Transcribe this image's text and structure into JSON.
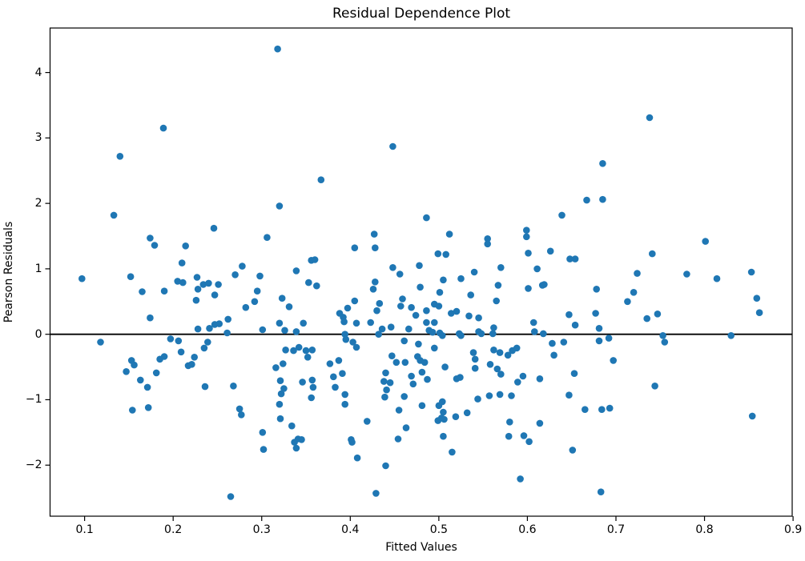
{
  "chart_data": {
    "type": "scatter",
    "title": "Residual Dependence Plot",
    "xlabel": "Fitted Values",
    "ylabel": "Pearson Residuals",
    "xlim": [
      0.061,
      0.899
    ],
    "ylim": [
      -2.78,
      4.68
    ],
    "grid": false,
    "legend": null,
    "marker_color": "#1f77b4",
    "zero_line": {
      "y": 0,
      "color": "#000000"
    },
    "x_ticks": [
      {
        "v": 0.1,
        "label": "0.1"
      },
      {
        "v": 0.2,
        "label": "0.2"
      },
      {
        "v": 0.3,
        "label": "0.3"
      },
      {
        "v": 0.4,
        "label": "0.4"
      },
      {
        "v": 0.5,
        "label": "0.5"
      },
      {
        "v": 0.6,
        "label": "0.6"
      },
      {
        "v": 0.7,
        "label": "0.7"
      },
      {
        "v": 0.8,
        "label": "0.8"
      },
      {
        "v": 0.9,
        "label": "0.9"
      }
    ],
    "y_ticks": [
      {
        "v": -2,
        "label": "−2"
      },
      {
        "v": -1,
        "label": "−1"
      },
      {
        "v": 0,
        "label": "0"
      },
      {
        "v": 1,
        "label": "1"
      },
      {
        "v": 2,
        "label": "2"
      },
      {
        "v": 3,
        "label": "3"
      },
      {
        "v": 4,
        "label": "4"
      }
    ],
    "points": [
      [
        0.318,
        4.36
      ],
      [
        0.189,
        3.15
      ],
      [
        0.14,
        2.72
      ],
      [
        0.448,
        2.87
      ],
      [
        0.367,
        2.36
      ],
      [
        0.32,
        1.96
      ],
      [
        0.133,
        1.82
      ],
      [
        0.246,
        1.62
      ],
      [
        0.174,
        1.47
      ],
      [
        0.179,
        1.36
      ],
      [
        0.214,
        1.35
      ],
      [
        0.306,
        1.48
      ],
      [
        0.21,
        1.09
      ],
      [
        0.278,
        1.04
      ],
      [
        0.339,
        0.97
      ],
      [
        0.356,
        1.13
      ],
      [
        0.36,
        1.14
      ],
      [
        0.405,
        1.32
      ],
      [
        0.427,
        1.53
      ],
      [
        0.428,
        1.32
      ],
      [
        0.448,
        1.02
      ],
      [
        0.456,
        0.92
      ],
      [
        0.478,
        1.05
      ],
      [
        0.738,
        3.31
      ],
      [
        0.685,
        2.61
      ],
      [
        0.685,
        2.06
      ],
      [
        0.667,
        2.05
      ],
      [
        0.639,
        1.82
      ],
      [
        0.486,
        1.78
      ],
      [
        0.512,
        1.53
      ],
      [
        0.555,
        1.46
      ],
      [
        0.555,
        1.38
      ],
      [
        0.599,
        1.59
      ],
      [
        0.599,
        1.49
      ],
      [
        0.499,
        1.23
      ],
      [
        0.508,
        1.22
      ],
      [
        0.601,
        1.24
      ],
      [
        0.626,
        1.27
      ],
      [
        0.648,
        1.15
      ],
      [
        0.654,
        1.15
      ],
      [
        0.741,
        1.23
      ],
      [
        0.801,
        1.42
      ],
      [
        0.54,
        0.95
      ],
      [
        0.57,
        1.02
      ],
      [
        0.611,
        1.0
      ],
      [
        0.724,
        0.93
      ],
      [
        0.78,
        0.92
      ],
      [
        0.853,
        0.95
      ],
      [
        0.097,
        0.85
      ],
      [
        0.152,
        0.88
      ],
      [
        0.165,
        0.65
      ],
      [
        0.19,
        0.66
      ],
      [
        0.174,
        0.25
      ],
      [
        0.205,
        0.81
      ],
      [
        0.211,
        0.79
      ],
      [
        0.227,
        0.87
      ],
      [
        0.228,
        0.69
      ],
      [
        0.234,
        0.76
      ],
      [
        0.24,
        0.78
      ],
      [
        0.226,
        0.52
      ],
      [
        0.247,
        0.6
      ],
      [
        0.251,
        0.76
      ],
      [
        0.27,
        0.91
      ],
      [
        0.282,
        0.41
      ],
      [
        0.292,
        0.5
      ],
      [
        0.298,
        0.89
      ],
      [
        0.295,
        0.66
      ],
      [
        0.323,
        0.55
      ],
      [
        0.331,
        0.42
      ],
      [
        0.262,
        0.23
      ],
      [
        0.228,
        0.08
      ],
      [
        0.241,
        0.09
      ],
      [
        0.247,
        0.15
      ],
      [
        0.252,
        0.16
      ],
      [
        0.261,
        0.02
      ],
      [
        0.301,
        0.07
      ],
      [
        0.32,
        0.17
      ],
      [
        0.326,
        0.06
      ],
      [
        0.339,
        0.04
      ],
      [
        0.118,
        -0.12
      ],
      [
        0.197,
        -0.07
      ],
      [
        0.206,
        -0.1
      ],
      [
        0.235,
        -0.21
      ],
      [
        0.239,
        -0.12
      ],
      [
        0.209,
        -0.27
      ],
      [
        0.224,
        -0.35
      ],
      [
        0.217,
        -0.48
      ],
      [
        0.221,
        -0.46
      ],
      [
        0.185,
        -0.38
      ],
      [
        0.19,
        -0.34
      ],
      [
        0.153,
        -0.4
      ],
      [
        0.156,
        -0.47
      ],
      [
        0.147,
        -0.57
      ],
      [
        0.181,
        -0.59
      ],
      [
        0.163,
        -0.7
      ],
      [
        0.171,
        -0.81
      ],
      [
        0.236,
        -0.8
      ],
      [
        0.268,
        -0.79
      ],
      [
        0.154,
        -1.16
      ],
      [
        0.172,
        -1.12
      ],
      [
        0.275,
        -1.14
      ],
      [
        0.277,
        -1.23
      ],
      [
        0.265,
        -2.48
      ],
      [
        0.316,
        -0.51
      ],
      [
        0.324,
        -0.45
      ],
      [
        0.321,
        -0.71
      ],
      [
        0.325,
        -0.83
      ],
      [
        0.322,
        -0.91
      ],
      [
        0.32,
        -1.07
      ],
      [
        0.321,
        -1.29
      ],
      [
        0.334,
        -1.4
      ],
      [
        0.337,
        -1.65
      ],
      [
        0.339,
        -1.74
      ],
      [
        0.341,
        -1.6
      ],
      [
        0.345,
        -1.61
      ],
      [
        0.301,
        -1.5
      ],
      [
        0.302,
        -1.76
      ],
      [
        0.327,
        -0.24
      ],
      [
        0.336,
        -0.25
      ],
      [
        0.353,
        0.79
      ],
      [
        0.362,
        0.74
      ],
      [
        0.428,
        0.8
      ],
      [
        0.426,
        0.69
      ],
      [
        0.479,
        0.72
      ],
      [
        0.505,
        0.83
      ],
      [
        0.525,
        0.85
      ],
      [
        0.567,
        0.75
      ],
      [
        0.601,
        0.7
      ],
      [
        0.617,
        0.75
      ],
      [
        0.501,
        0.64
      ],
      [
        0.536,
        0.6
      ],
      [
        0.565,
        0.51
      ],
      [
        0.405,
        0.51
      ],
      [
        0.397,
        0.4
      ],
      [
        0.433,
        0.47
      ],
      [
        0.43,
        0.36
      ],
      [
        0.459,
        0.54
      ],
      [
        0.457,
        0.43
      ],
      [
        0.469,
        0.41
      ],
      [
        0.474,
        0.29
      ],
      [
        0.486,
        0.36
      ],
      [
        0.495,
        0.46
      ],
      [
        0.5,
        0.43
      ],
      [
        0.486,
        0.18
      ],
      [
        0.495,
        0.18
      ],
      [
        0.514,
        0.32
      ],
      [
        0.52,
        0.35
      ],
      [
        0.534,
        0.28
      ],
      [
        0.545,
        0.25
      ],
      [
        0.388,
        0.32
      ],
      [
        0.392,
        0.26
      ],
      [
        0.393,
        0.19
      ],
      [
        0.347,
        0.17
      ],
      [
        0.407,
        0.17
      ],
      [
        0.423,
        0.18
      ],
      [
        0.436,
        0.08
      ],
      [
        0.446,
        0.11
      ],
      [
        0.432,
        0.0
      ],
      [
        0.394,
        0.0
      ],
      [
        0.395,
        -0.08
      ],
      [
        0.403,
        -0.12
      ],
      [
        0.407,
        -0.2
      ],
      [
        0.466,
        0.08
      ],
      [
        0.461,
        -0.1
      ],
      [
        0.477,
        -0.15
      ],
      [
        0.489,
        0.06
      ],
      [
        0.493,
        0.03
      ],
      [
        0.501,
        0.02
      ],
      [
        0.504,
        -0.02
      ],
      [
        0.523,
        0.01
      ],
      [
        0.525,
        -0.02
      ],
      [
        0.545,
        0.04
      ],
      [
        0.548,
        0.01
      ],
      [
        0.562,
        0.1
      ],
      [
        0.561,
        0.01
      ],
      [
        0.607,
        0.18
      ],
      [
        0.608,
        0.04
      ],
      [
        0.618,
        0.01
      ],
      [
        0.342,
        -0.2
      ],
      [
        0.35,
        -0.25
      ],
      [
        0.352,
        -0.35
      ],
      [
        0.357,
        -0.24
      ],
      [
        0.377,
        -0.45
      ],
      [
        0.387,
        -0.4
      ],
      [
        0.447,
        -0.33
      ],
      [
        0.452,
        -0.43
      ],
      [
        0.462,
        -0.43
      ],
      [
        0.476,
        -0.34
      ],
      [
        0.479,
        -0.4
      ],
      [
        0.484,
        -0.43
      ],
      [
        0.495,
        -0.21
      ],
      [
        0.507,
        -0.5
      ],
      [
        0.539,
        -0.28
      ],
      [
        0.541,
        -0.38
      ],
      [
        0.558,
        -0.46
      ],
      [
        0.566,
        -0.53
      ],
      [
        0.57,
        -0.61
      ],
      [
        0.562,
        -0.24
      ],
      [
        0.569,
        -0.28
      ],
      [
        0.578,
        -0.32
      ],
      [
        0.583,
        -0.25
      ],
      [
        0.588,
        -0.21
      ],
      [
        0.381,
        -0.65
      ],
      [
        0.391,
        -0.6
      ],
      [
        0.383,
        -0.81
      ],
      [
        0.394,
        -0.92
      ],
      [
        0.44,
        -0.59
      ],
      [
        0.438,
        -0.72
      ],
      [
        0.445,
        -0.74
      ],
      [
        0.469,
        -0.64
      ],
      [
        0.471,
        -0.76
      ],
      [
        0.481,
        -0.58
      ],
      [
        0.487,
        -0.69
      ],
      [
        0.52,
        -0.68
      ],
      [
        0.524,
        -0.66
      ],
      [
        0.541,
        -0.52
      ],
      [
        0.589,
        -0.73
      ],
      [
        0.595,
        -0.64
      ],
      [
        0.614,
        -0.68
      ],
      [
        0.346,
        -0.73
      ],
      [
        0.357,
        -0.7
      ],
      [
        0.358,
        -0.81
      ],
      [
        0.356,
        -0.97
      ],
      [
        0.394,
        -1.07
      ],
      [
        0.441,
        -0.85
      ],
      [
        0.439,
        -0.96
      ],
      [
        0.461,
        -0.95
      ],
      [
        0.455,
        -1.16
      ],
      [
        0.481,
        -1.09
      ],
      [
        0.5,
        -1.09
      ],
      [
        0.504,
        -1.03
      ],
      [
        0.505,
        -1.19
      ],
      [
        0.503,
        -1.28
      ],
      [
        0.499,
        -1.32
      ],
      [
        0.506,
        -1.3
      ],
      [
        0.519,
        -1.26
      ],
      [
        0.532,
        -1.2
      ],
      [
        0.544,
        -0.99
      ],
      [
        0.557,
        -0.94
      ],
      [
        0.569,
        -0.92
      ],
      [
        0.582,
        -0.94
      ],
      [
        0.419,
        -1.33
      ],
      [
        0.463,
        -1.43
      ],
      [
        0.454,
        -1.6
      ],
      [
        0.401,
        -1.61
      ],
      [
        0.402,
        -1.65
      ],
      [
        0.408,
        -1.89
      ],
      [
        0.44,
        -2.01
      ],
      [
        0.505,
        -1.56
      ],
      [
        0.515,
        -1.8
      ],
      [
        0.58,
        -1.34
      ],
      [
        0.579,
        -1.56
      ],
      [
        0.596,
        -1.55
      ],
      [
        0.602,
        -1.64
      ],
      [
        0.614,
        -1.36
      ],
      [
        0.592,
        -2.21
      ],
      [
        0.429,
        -2.43
      ],
      [
        0.619,
        0.76
      ],
      [
        0.678,
        0.69
      ],
      [
        0.72,
        0.64
      ],
      [
        0.713,
        0.5
      ],
      [
        0.647,
        0.3
      ],
      [
        0.677,
        0.32
      ],
      [
        0.654,
        0.14
      ],
      [
        0.681,
        0.09
      ],
      [
        0.735,
        0.24
      ],
      [
        0.747,
        0.31
      ],
      [
        0.814,
        0.85
      ],
      [
        0.859,
        0.55
      ],
      [
        0.862,
        0.33
      ],
      [
        0.753,
        -0.02
      ],
      [
        0.755,
        -0.12
      ],
      [
        0.83,
        -0.02
      ],
      [
        0.681,
        -0.1
      ],
      [
        0.692,
        -0.06
      ],
      [
        0.628,
        -0.14
      ],
      [
        0.641,
        -0.12
      ],
      [
        0.63,
        -0.32
      ],
      [
        0.697,
        -0.4
      ],
      [
        0.653,
        -0.6
      ],
      [
        0.744,
        -0.79
      ],
      [
        0.647,
        -0.93
      ],
      [
        0.665,
        -1.15
      ],
      [
        0.684,
        -1.15
      ],
      [
        0.693,
        -1.13
      ],
      [
        0.854,
        -1.25
      ],
      [
        0.651,
        -1.77
      ],
      [
        0.683,
        -2.41
      ]
    ]
  }
}
